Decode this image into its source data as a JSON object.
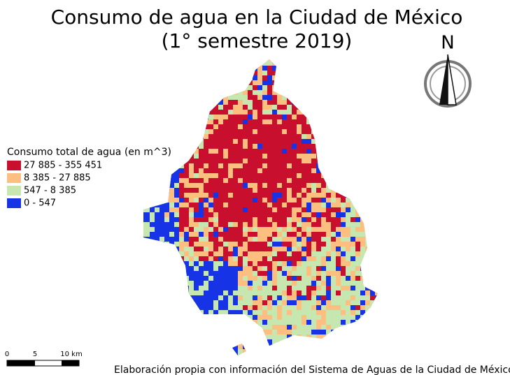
{
  "title": [
    "Consumo de agua en la Ciudad de México",
    "(1° semestre 2019)"
  ],
  "north": "N",
  "legend": {
    "title": "Consumo total de agua (en m^3)",
    "items": [
      {
        "label": "27 885 - 355 451",
        "color": "#c8102e"
      },
      {
        "label": "8 385 - 27 885",
        "color": "#fdbf7f"
      },
      {
        "label": "547 - 8 385",
        "color": "#c6e8b0"
      },
      {
        "label": "0 - 547",
        "color": "#1733e6"
      }
    ]
  },
  "scale_bar": [
    "0",
    "5",
    "10 km"
  ],
  "credit": "Elaboración propia con información del Sistema de Aguas de la Ciudad de México"
}
